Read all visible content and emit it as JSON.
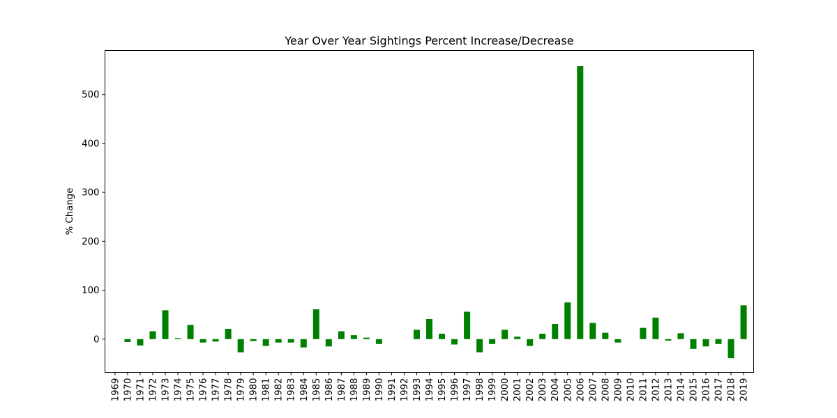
{
  "chart_data": {
    "type": "bar",
    "title": "Year Over Year Sightings Percent Increase/Decrease",
    "xlabel": "",
    "ylabel": "% Change",
    "ylim": [
      -68,
      590
    ],
    "yticks": [
      0,
      100,
      200,
      300,
      400,
      500
    ],
    "grid": false,
    "bar_color": "#008000",
    "categories": [
      "1969",
      "1970",
      "1971",
      "1972",
      "1973",
      "1974",
      "1975",
      "1976",
      "1977",
      "1978",
      "1979",
      "1980",
      "1981",
      "1982",
      "1983",
      "1984",
      "1985",
      "1986",
      "1987",
      "1988",
      "1989",
      "1990",
      "1991",
      "1992",
      "1993",
      "1994",
      "1995",
      "1996",
      "1997",
      "1998",
      "1999",
      "2000",
      "2001",
      "2002",
      "2003",
      "2004",
      "2005",
      "2006",
      "2007",
      "2008",
      "2009",
      "2010",
      "2011",
      "2012",
      "2013",
      "2014",
      "2015",
      "2016",
      "2017",
      "2018",
      "2019"
    ],
    "values": [
      null,
      -6,
      -13,
      16,
      59,
      2,
      29,
      -7,
      -5,
      21,
      -27,
      -4,
      -14,
      -7,
      -7,
      -17,
      61,
      -15,
      16,
      8,
      3,
      -10,
      null,
      null,
      19,
      41,
      11,
      -11,
      56,
      -27,
      -10,
      19,
      5,
      -14,
      11,
      31,
      75,
      558,
      33,
      13,
      -7,
      null,
      23,
      44,
      -3,
      12,
      -20,
      -15,
      -10,
      -39,
      69
    ]
  }
}
